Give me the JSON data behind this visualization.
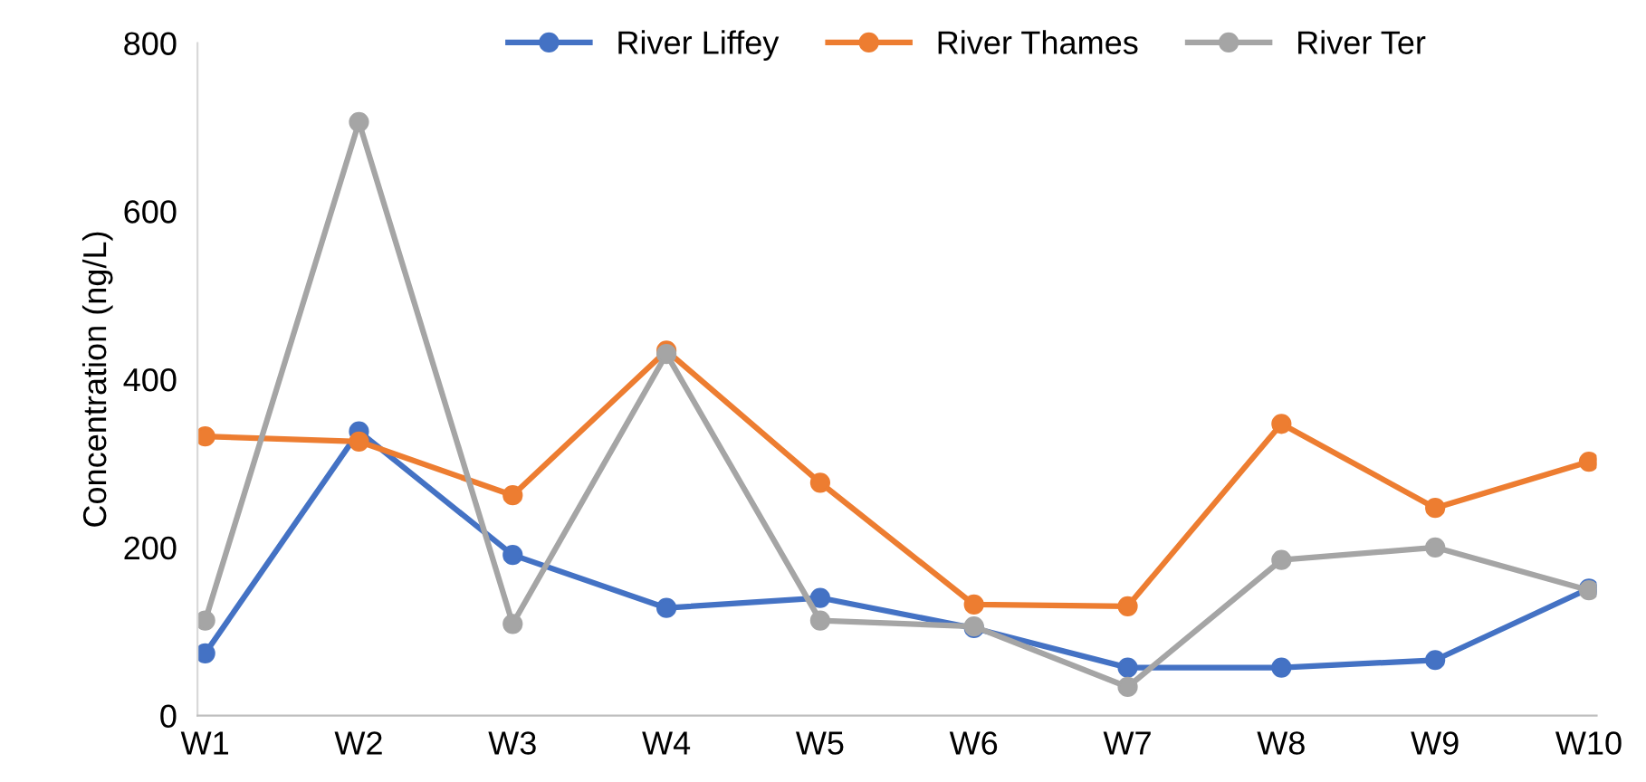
{
  "chart_data": {
    "type": "line",
    "ylabel": "Concentration (ng/L)",
    "categories": [
      "W1",
      "W2",
      "W3",
      "W4",
      "W5",
      "W6",
      "W7",
      "W8",
      "W9",
      "W10"
    ],
    "series": [
      {
        "name": "River Liffey",
        "color": "#4472c4",
        "values": [
          74,
          338,
          191,
          128,
          140,
          104,
          57,
          57,
          66,
          151
        ]
      },
      {
        "name": "River Thames",
        "color": "#ed7d31",
        "values": [
          332,
          326,
          262,
          434,
          277,
          132,
          130,
          347,
          247,
          302
        ]
      },
      {
        "name": "River Ter",
        "color": "#a5a5a5",
        "values": [
          113,
          706,
          109,
          430,
          113,
          106,
          34,
          185,
          200,
          149
        ]
      }
    ],
    "ylim": [
      0,
      800
    ],
    "yticks": [
      0,
      200,
      400,
      600,
      800
    ],
    "grid": false,
    "legend": "top",
    "marker": "circle",
    "line_style": "solid"
  }
}
